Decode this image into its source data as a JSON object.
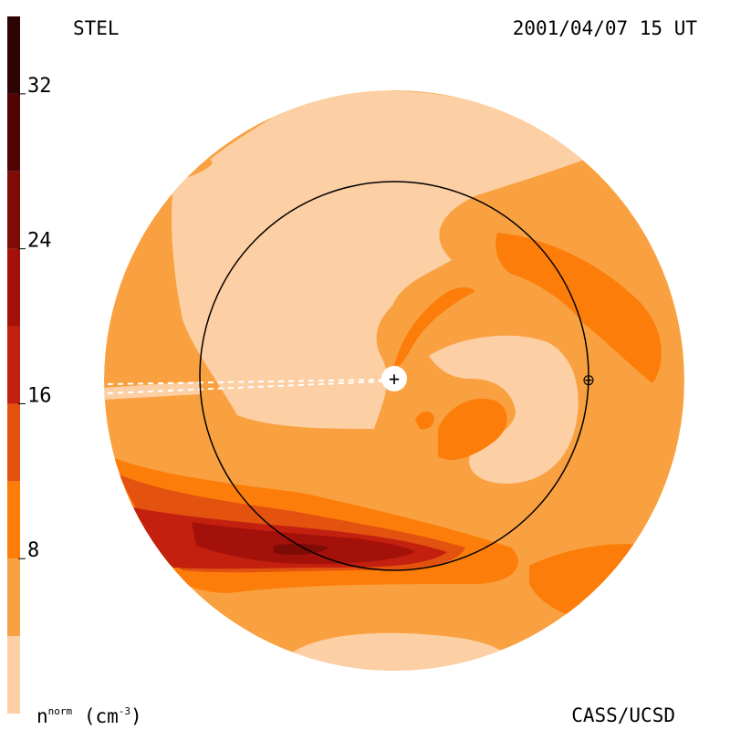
{
  "header": {
    "model_label": "STEL",
    "timestamp": "2001/04/07 15 UT"
  },
  "footer": {
    "credit": "CASS/UCSD"
  },
  "colorbar": {
    "quantity": "n",
    "quantity_superscript": "norm",
    "unit": "(cm",
    "unit_exponent": "-3",
    "unit_close": ")",
    "range": [
      0,
      36
    ],
    "ticks": [
      "8",
      "16",
      "24",
      "32"
    ],
    "tick_values": [
      8,
      16,
      24,
      32
    ],
    "levels": [
      0,
      4,
      8,
      12,
      16,
      20,
      24,
      28,
      32,
      36
    ],
    "level_colors": [
      "#fccfa4",
      "#f9a140",
      "#fc7d0a",
      "#e3520f",
      "#c3200f",
      "#a3110a",
      "#7d0b06",
      "#520404",
      "#2e0303"
    ]
  },
  "map": {
    "background_color": "#f9a140",
    "sun_symbol": "+",
    "earth_symbol": "⊕",
    "earth_orbit": "circle"
  }
}
